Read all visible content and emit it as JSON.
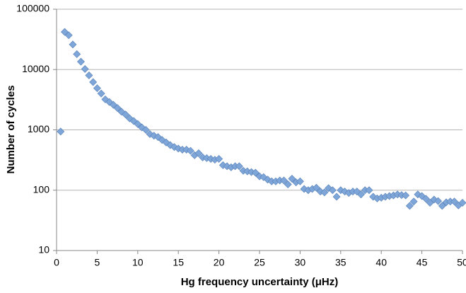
{
  "chart_data": {
    "type": "scatter",
    "x_label": "Hg frequency uncertainty (μHz)",
    "y_label": "Number of cycles",
    "log_y": true,
    "grid": true,
    "color": "#7ea6d8",
    "xlim": [
      0,
      50
    ],
    "xticks": [
      0,
      5,
      10,
      15,
      20,
      25,
      30,
      35,
      40,
      45,
      50
    ],
    "ylim": [
      10,
      100000
    ],
    "yticks": [
      10,
      100,
      1000,
      10000,
      100000
    ],
    "x": [
      0.5,
      1,
      1.5,
      2,
      2.5,
      3,
      3.5,
      4,
      4.5,
      5,
      5.5,
      6,
      6.5,
      7,
      7.5,
      8,
      8.5,
      9,
      9.5,
      10,
      10.5,
      11,
      11.5,
      12,
      12.5,
      13,
      13.5,
      14,
      14.5,
      15,
      15.5,
      16,
      16.5,
      17,
      17.5,
      18,
      18.5,
      19,
      19.5,
      20,
      20.5,
      21,
      21.5,
      22,
      22.5,
      23,
      23.5,
      24,
      24.5,
      25,
      25.5,
      26,
      26.5,
      27,
      27.5,
      28,
      28.5,
      29,
      29.5,
      30,
      30.5,
      31,
      31.5,
      32,
      32.5,
      33,
      33.5,
      34,
      34.5,
      35,
      35.5,
      36,
      36.5,
      37,
      37.5,
      38,
      38.5,
      39,
      39.5,
      40,
      40.5,
      41,
      41.5,
      42,
      42.5,
      43,
      43.5,
      44,
      44.5,
      45,
      45.5,
      46,
      46.5,
      47,
      47.5,
      48,
      48.5,
      49,
      49.5,
      50
    ],
    "values": [
      938,
      42000,
      37000,
      26000,
      18000,
      13500,
      10200,
      8000,
      6200,
      4900,
      4000,
      3200,
      2900,
      2600,
      2300,
      2000,
      1800,
      1550,
      1400,
      1250,
      1100,
      1000,
      850,
      800,
      760,
      680,
      620,
      560,
      520,
      490,
      470,
      470,
      450,
      380,
      410,
      350,
      340,
      330,
      320,
      330,
      260,
      250,
      240,
      250,
      250,
      210,
      205,
      200,
      195,
      170,
      165,
      150,
      140,
      140,
      145,
      145,
      125,
      155,
      135,
      140,
      105,
      100,
      105,
      110,
      95,
      92,
      108,
      100,
      78,
      100,
      95,
      90,
      95,
      95,
      85,
      100,
      100,
      78,
      73,
      75,
      78,
      80,
      82,
      85,
      83,
      82,
      55,
      65,
      85,
      80,
      72,
      62,
      70,
      66,
      55,
      63,
      65,
      65,
      56,
      62
    ]
  }
}
